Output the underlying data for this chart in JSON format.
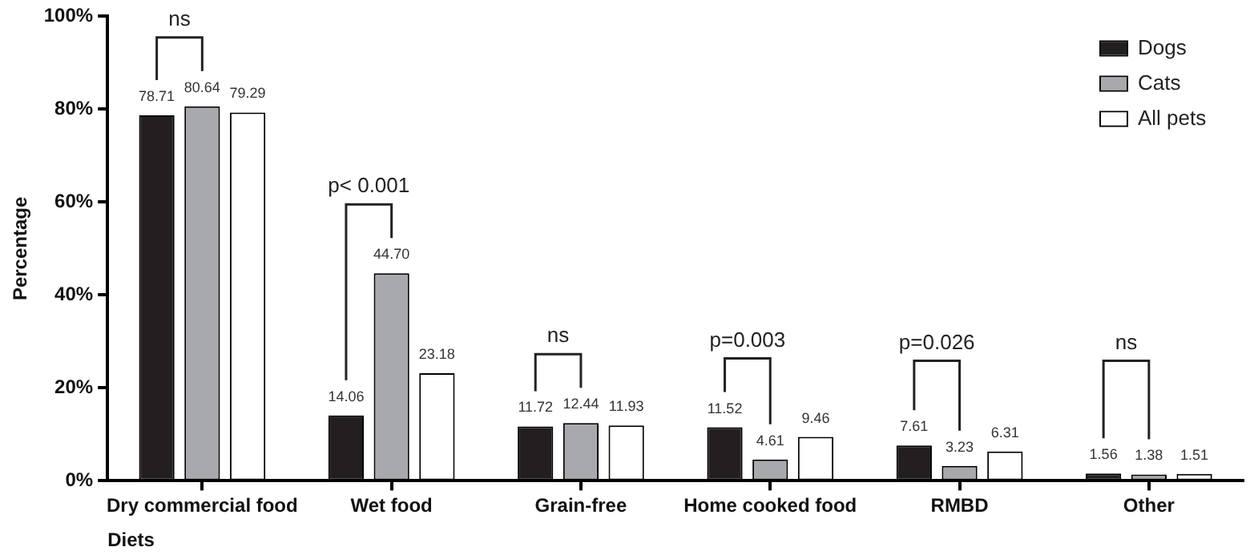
{
  "chart_data": {
    "type": "bar",
    "xlabel": "Diets",
    "ylabel": "Percentage",
    "categories": [
      "Dry commercial food",
      "Wet food",
      "Grain-free",
      "Home cooked food",
      "RMBD",
      "Other"
    ],
    "series": [
      {
        "name": "Dogs",
        "color": "#231f20",
        "values": [
          78.71,
          14.06,
          11.72,
          11.52,
          7.61,
          1.56
        ]
      },
      {
        "name": "Cats",
        "color": "#a7a9ac",
        "values": [
          80.64,
          44.7,
          12.44,
          4.61,
          3.23,
          1.38
        ]
      },
      {
        "name": "All pets",
        "color": "#ffffff",
        "values": [
          79.29,
          23.18,
          11.93,
          9.46,
          6.31,
          1.51
        ]
      }
    ],
    "value_labels": [
      [
        "78.71",
        "14.06",
        "11.72",
        "11.52",
        "7.61",
        "1.56"
      ],
      [
        "80.64",
        "44.70",
        "12.44",
        "4.61",
        "3.23",
        "1.38"
      ],
      [
        "79.29",
        "23.18",
        "11.93",
        "9.46",
        "6.31",
        "1.51"
      ]
    ],
    "ylim": [
      0,
      100
    ],
    "yticks": [
      {
        "value": 0,
        "label": "0%"
      },
      {
        "value": 20,
        "label": "20%"
      },
      {
        "value": 40,
        "label": "40%"
      },
      {
        "value": 60,
        "label": "60%"
      },
      {
        "value": 80,
        "label": "80%"
      },
      {
        "value": 100,
        "label": "100%"
      }
    ],
    "annotations": [
      "ns",
      "p< 0.001",
      "ns",
      "p=0.003",
      "p=0.026",
      "ns"
    ],
    "grid": false,
    "legend": "top right"
  }
}
